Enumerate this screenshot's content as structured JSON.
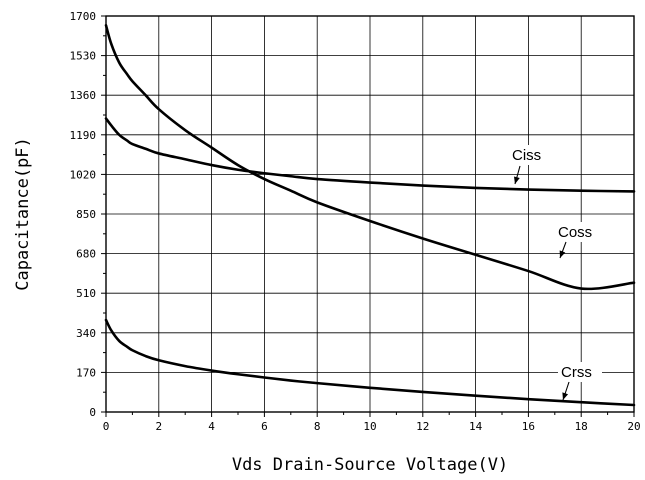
{
  "chart_data": {
    "type": "line",
    "title": "",
    "xlabel": "Vds Drain-Source Voltage(V)",
    "ylabel": "Capacitance(pF)",
    "xlim": [
      0,
      20
    ],
    "ylim": [
      0,
      1700
    ],
    "x_ticks": [
      "0",
      "2",
      "4",
      "6",
      "8",
      "10",
      "12",
      "14",
      "16",
      "18",
      "20"
    ],
    "y_ticks": [
      "0",
      "170",
      "340",
      "510",
      "680",
      "850",
      "1020",
      "1190",
      "1360",
      "1530",
      "1700"
    ],
    "grid": true,
    "line_color": "#000000",
    "series": [
      {
        "name": "Ciss",
        "x": [
          0,
          0.2,
          0.5,
          0.8,
          1,
          1.5,
          2,
          3,
          4,
          5,
          6,
          7,
          8,
          10,
          12,
          14,
          16,
          18,
          20
        ],
        "y": [
          1260,
          1230,
          1190,
          1165,
          1150,
          1130,
          1110,
          1085,
          1060,
          1040,
          1025,
          1012,
          1000,
          985,
          972,
          962,
          955,
          950,
          947
        ]
      },
      {
        "name": "Coss",
        "x": [
          0,
          0.2,
          0.5,
          0.8,
          1,
          1.5,
          2,
          3,
          4,
          5,
          6,
          7,
          8,
          10,
          12,
          14,
          16,
          18,
          20
        ],
        "y": [
          1660,
          1580,
          1500,
          1450,
          1420,
          1360,
          1300,
          1210,
          1135,
          1060,
          1000,
          950,
          900,
          820,
          745,
          675,
          605,
          530,
          555
        ]
      },
      {
        "name": "Crss",
        "x": [
          0,
          0.2,
          0.5,
          0.8,
          1,
          1.5,
          2,
          3,
          4,
          5,
          6,
          7,
          8,
          10,
          12,
          14,
          16,
          18,
          20
        ],
        "y": [
          395,
          350,
          305,
          280,
          265,
          240,
          222,
          197,
          178,
          162,
          148,
          135,
          124,
          104,
          86,
          70,
          55,
          42,
          30
        ]
      }
    ]
  }
}
